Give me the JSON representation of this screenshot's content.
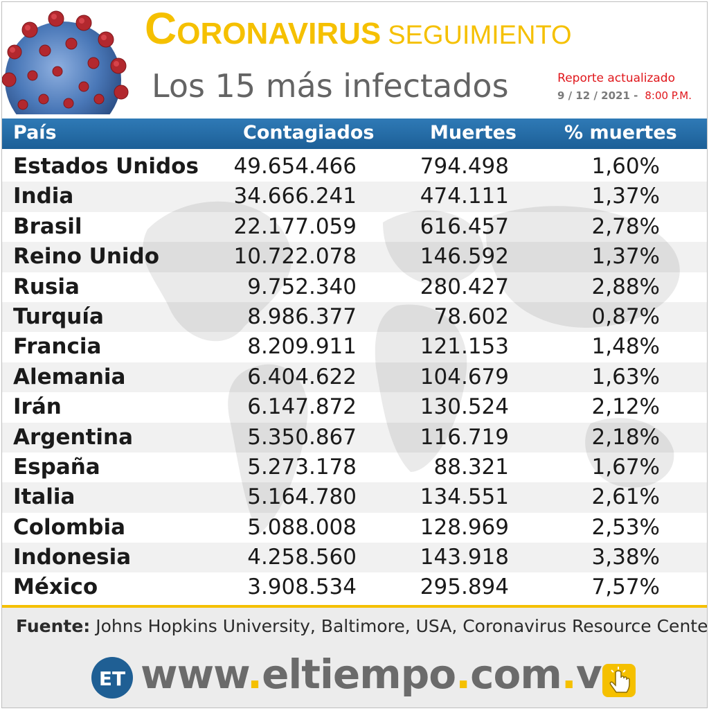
{
  "header": {
    "title_first": "C",
    "title_rest": "ORONAVIRUS",
    "title_second": "SEGUIMIENTO",
    "subtitle": "Los 15 más infectados",
    "report_label": "Reporte actualizado",
    "report_date": "9 / 12 / 2021 -",
    "report_time": "8:00 P.M."
  },
  "table": {
    "columns": [
      "País",
      "Contagiados",
      "Muertes",
      "% muertes"
    ],
    "rows": [
      {
        "country": "Estados Unidos",
        "cases": "49.654.466",
        "deaths": "794.498",
        "pct": "1,60%"
      },
      {
        "country": "India",
        "cases": "34.666.241",
        "deaths": "474.111",
        "pct": "1,37%"
      },
      {
        "country": "Brasil",
        "cases": "22.177.059",
        "deaths": "616.457",
        "pct": "2,78%"
      },
      {
        "country": "Reino Unido",
        "cases": "10.722.078",
        "deaths": "146.592",
        "pct": "1,37%"
      },
      {
        "country": "Rusia",
        "cases": "9.752.340",
        "deaths": "280.427",
        "pct": "2,88%"
      },
      {
        "country": "Turquía",
        "cases": "8.986.377",
        "deaths": "78.602",
        "pct": "0,87%"
      },
      {
        "country": "Francia",
        "cases": "8.209.911",
        "deaths": "121.153",
        "pct": "1,48%"
      },
      {
        "country": "Alemania",
        "cases": "6.404.622",
        "deaths": "104.679",
        "pct": "1,63%"
      },
      {
        "country": "Irán",
        "cases": "6.147.872",
        "deaths": "130.524",
        "pct": "2,12%"
      },
      {
        "country": "Argentina",
        "cases": "5.350.867",
        "deaths": "116.719",
        "pct": "2,18%"
      },
      {
        "country": "España",
        "cases": "5.273.178",
        "deaths": "88.321",
        "pct": "1,67%"
      },
      {
        "country": "Italia",
        "cases": "5.164.780",
        "deaths": "134.551",
        "pct": "2,61%"
      },
      {
        "country": "Colombia",
        "cases": "5.088.008",
        "deaths": "128.969",
        "pct": "2,53%"
      },
      {
        "country": "Indonesia",
        "cases": "4.258.560",
        "deaths": "143.918",
        "pct": "3,38%"
      },
      {
        "country": "México",
        "cases": "3.908.534",
        "deaths": "295.894",
        "pct": "7,57%"
      }
    ]
  },
  "footer": {
    "source_label": "Fuente:",
    "source_text": "Johns Hopkins University, Baltimore, USA, Coronavirus Resource Center",
    "logo_text": "ET",
    "site_parts": [
      "www",
      ".",
      "eltiempo",
      ".",
      "com",
      ".",
      "ve"
    ]
  },
  "colors": {
    "title_yellow": "#f5c000",
    "header_blue": "#2272ad",
    "alert_red": "#e0161b",
    "virus_red": "#b2282e",
    "virus_blue": "#4a78b8"
  },
  "icons": [
    "coronavirus-illustration",
    "world-map-watermark",
    "eltiempo-logo-icon",
    "hand-click-icon"
  ]
}
